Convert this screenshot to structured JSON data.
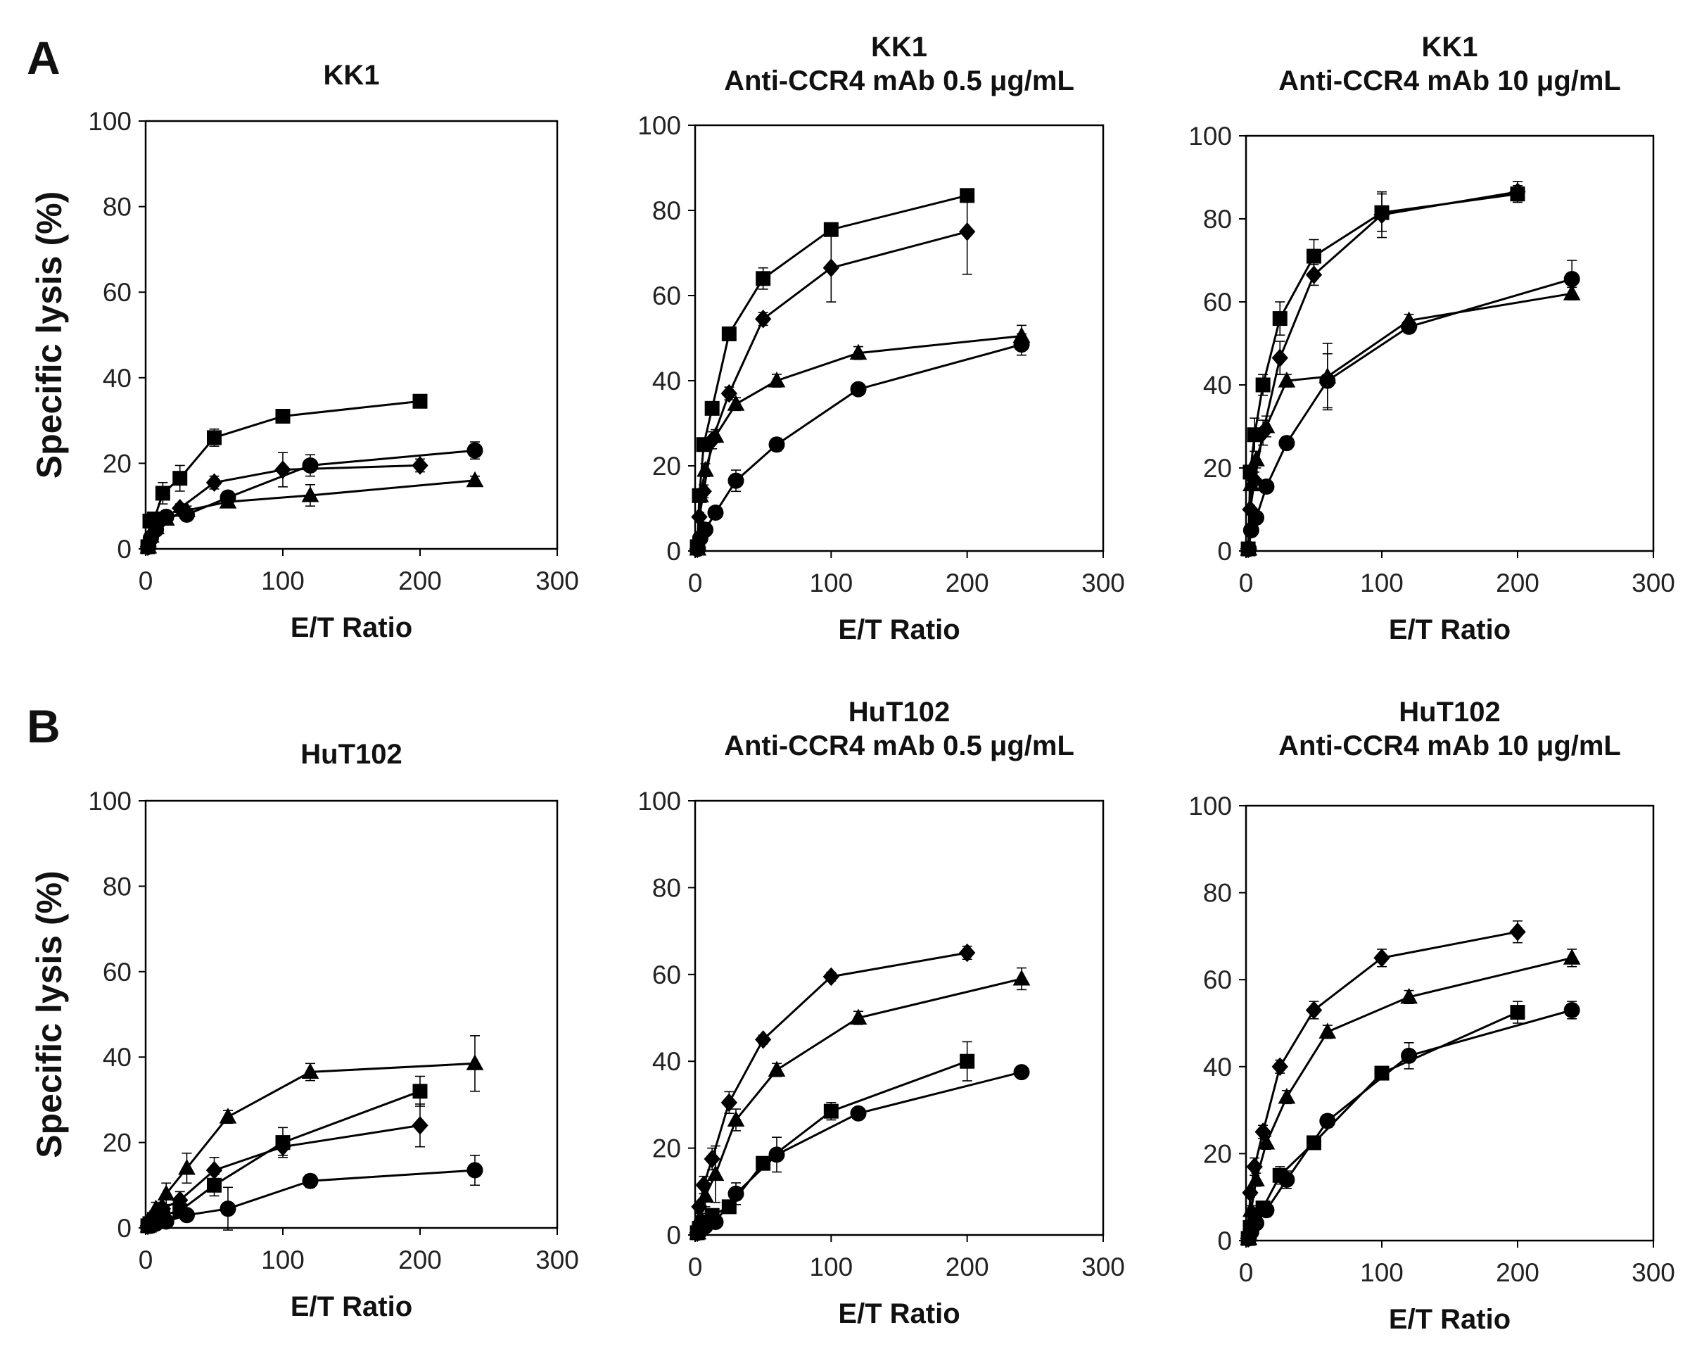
{
  "panel_labels": [
    "A",
    "B"
  ],
  "chart_data": [
    {
      "type": "line",
      "panel": "A",
      "title_lines": [
        "KK1"
      ],
      "xlabel": "E/T Ratio",
      "ylabel": "Specific lysis (%)",
      "xlim": [
        0,
        300
      ],
      "ylim": [
        0,
        100
      ],
      "xticks": [
        "0",
        "100",
        "200",
        "300"
      ],
      "yticks": [
        "0",
        "20",
        "40",
        "60",
        "80",
        "100"
      ],
      "series": [
        {
          "name": "square",
          "marker": "square",
          "x": [
            1.6,
            3.1,
            6.3,
            12.5,
            25,
            50,
            100,
            200
          ],
          "y": [
            0.5,
            6.5,
            7,
            13,
            16.5,
            26,
            31,
            34.5
          ],
          "err": [
            0.5,
            1,
            1.5,
            2.5,
            3,
            2,
            1.5,
            1
          ]
        },
        {
          "name": "diamond",
          "marker": "diamond",
          "x": [
            1.6,
            3.1,
            6.3,
            12.5,
            25,
            50,
            100,
            200
          ],
          "y": [
            0.5,
            2,
            4,
            7,
            9.5,
            15.5,
            18.5,
            19.5
          ],
          "err": [
            0.5,
            0.5,
            1,
            1,
            1,
            1.5,
            4,
            1.5
          ]
        },
        {
          "name": "triangle",
          "marker": "triangle",
          "x": [
            2,
            3.8,
            7.5,
            15,
            30,
            60,
            120,
            240
          ],
          "y": [
            0.5,
            3,
            5,
            7,
            9,
            11,
            12.5,
            16
          ],
          "err": [
            0.5,
            0.5,
            1,
            1,
            1,
            1,
            2.5,
            1
          ]
        },
        {
          "name": "circle",
          "marker": "circle",
          "x": [
            2,
            3.8,
            7.5,
            15,
            30,
            60,
            120,
            240
          ],
          "y": [
            0.5,
            2.5,
            4.5,
            7.5,
            8,
            12,
            19.5,
            23
          ],
          "err": [
            0.5,
            0.5,
            1,
            1,
            1,
            1,
            2.5,
            2
          ]
        }
      ]
    },
    {
      "type": "line",
      "panel": "A",
      "title_lines": [
        "KK1",
        "Anti-CCR4 mAb 0.5 μg/mL"
      ],
      "xlabel": "E/T Ratio",
      "ylabel": "",
      "xlim": [
        0,
        300
      ],
      "ylim": [
        0,
        100
      ],
      "xticks": [
        "0",
        "100",
        "200",
        "300"
      ],
      "yticks": [
        "0",
        "20",
        "40",
        "60",
        "80",
        "100"
      ],
      "series": [
        {
          "name": "square",
          "marker": "square",
          "x": [
            1.6,
            3.1,
            6.3,
            12.5,
            25,
            50,
            100,
            200
          ],
          "y": [
            1,
            13,
            25,
            33.5,
            51,
            64,
            75.5,
            83.5
          ],
          "err": [
            0.5,
            1,
            1.5,
            1.5,
            1.5,
            2.5,
            1.5,
            1.5
          ]
        },
        {
          "name": "diamond",
          "marker": "diamond",
          "x": [
            1.6,
            3.1,
            6.3,
            12.5,
            25,
            50,
            100,
            200
          ],
          "y": [
            0.5,
            8,
            14,
            26,
            37,
            54.5,
            66.5,
            75
          ],
          "err": [
            0.5,
            1,
            1.5,
            2,
            1.5,
            1.5,
            8,
            10
          ]
        },
        {
          "name": "triangle",
          "marker": "triangle",
          "x": [
            2,
            3.8,
            7.5,
            15,
            30,
            60,
            120,
            240
          ],
          "y": [
            0.5,
            13,
            19,
            27,
            34.5,
            40,
            46.5,
            50.5
          ],
          "err": [
            0.5,
            1,
            1.5,
            1.5,
            1.5,
            1.5,
            1.5,
            2.5
          ]
        },
        {
          "name": "circle",
          "marker": "circle",
          "x": [
            2,
            3.8,
            7.5,
            15,
            30,
            60,
            120,
            240
          ],
          "y": [
            0.5,
            3,
            5,
            9,
            16.5,
            25,
            38,
            48.5
          ],
          "err": [
            0.5,
            0.5,
            1,
            1,
            2.5,
            1.5,
            1,
            2.5
          ]
        }
      ]
    },
    {
      "type": "line",
      "panel": "A",
      "title_lines": [
        "KK1",
        "Anti-CCR4 mAb 10 μg/mL"
      ],
      "xlabel": "E/T Ratio",
      "ylabel": "",
      "xlim": [
        0,
        300
      ],
      "ylim": [
        0,
        100
      ],
      "xticks": [
        "0",
        "100",
        "200",
        "300"
      ],
      "yticks": [
        "0",
        "20",
        "40",
        "60",
        "80",
        "100"
      ],
      "series": [
        {
          "name": "square",
          "marker": "square",
          "x": [
            1.6,
            3.1,
            6.3,
            12.5,
            25,
            50,
            100,
            200
          ],
          "y": [
            0.5,
            19,
            28,
            40,
            56,
            71,
            81.5,
            86
          ],
          "err": [
            0.5,
            1.5,
            4,
            2.5,
            4,
            4,
            4.5,
            2
          ]
        },
        {
          "name": "diamond",
          "marker": "diamond",
          "x": [
            1.6,
            3.1,
            6.3,
            12.5,
            25,
            50,
            100,
            200
          ],
          "y": [
            0.5,
            10,
            17,
            28.5,
            46.5,
            66.5,
            81,
            86.5
          ],
          "err": [
            0.5,
            1,
            2,
            3,
            4,
            2.5,
            5.5,
            2.5
          ]
        },
        {
          "name": "triangle",
          "marker": "triangle",
          "x": [
            2,
            3.8,
            7.5,
            15,
            30,
            60,
            120,
            240
          ],
          "y": [
            0.5,
            16,
            22,
            30,
            41,
            42,
            55.5,
            62
          ],
          "err": [
            0.5,
            1,
            2,
            2.5,
            1.5,
            8,
            1.5,
            1.5
          ]
        },
        {
          "name": "circle",
          "marker": "circle",
          "x": [
            2,
            3.8,
            7.5,
            15,
            30,
            60,
            120,
            240
          ],
          "y": [
            0.5,
            5,
            8,
            15.5,
            26,
            41,
            54,
            65.5
          ],
          "err": [
            0.5,
            1,
            1,
            1.5,
            1.5,
            6.5,
            1.5,
            4.5
          ]
        }
      ]
    },
    {
      "type": "line",
      "panel": "B",
      "title_lines": [
        "HuT102"
      ],
      "xlabel": "E/T Ratio",
      "ylabel": "Specific lysis (%)",
      "xlim": [
        0,
        300
      ],
      "ylim": [
        0,
        100
      ],
      "xticks": [
        "0",
        "100",
        "200",
        "300"
      ],
      "yticks": [
        "0",
        "20",
        "40",
        "60",
        "80",
        "100"
      ],
      "series": [
        {
          "name": "square",
          "marker": "square",
          "x": [
            1.6,
            3.1,
            6.3,
            12.5,
            25,
            50,
            100,
            200
          ],
          "y": [
            0.5,
            1,
            2,
            3,
            4,
            10,
            20,
            32
          ],
          "err": [
            0.5,
            0.5,
            1,
            1,
            1,
            2.5,
            3.5,
            3.5
          ]
        },
        {
          "name": "diamond",
          "marker": "diamond",
          "x": [
            1.6,
            3.1,
            6.3,
            12.5,
            25,
            50,
            100,
            200
          ],
          "y": [
            0.5,
            1.5,
            3,
            4.5,
            6.5,
            13.5,
            19,
            24
          ],
          "err": [
            0.5,
            0.5,
            1,
            1,
            2,
            3,
            2,
            5
          ]
        },
        {
          "name": "triangle",
          "marker": "triangle",
          "x": [
            2,
            3.8,
            7.5,
            15,
            30,
            60,
            120,
            240
          ],
          "y": [
            0.5,
            2,
            4.5,
            8,
            14,
            26,
            36.5,
            38.5
          ],
          "err": [
            0.5,
            0.5,
            1.5,
            2.5,
            3.5,
            1.5,
            2,
            6.5
          ]
        },
        {
          "name": "circle",
          "marker": "circle",
          "x": [
            2,
            3.8,
            7.5,
            15,
            30,
            60,
            120,
            240
          ],
          "y": [
            0.5,
            0.5,
            1,
            1.5,
            3,
            4.5,
            11,
            13.5
          ],
          "err": [
            0.5,
            0.5,
            0.5,
            0.5,
            1,
            5,
            1.5,
            3.5
          ]
        }
      ]
    },
    {
      "type": "line",
      "panel": "B",
      "title_lines": [
        "HuT102",
        "Anti-CCR4 mAb 0.5 μg/mL"
      ],
      "xlabel": "E/T Ratio",
      "ylabel": "",
      "xlim": [
        0,
        300
      ],
      "ylim": [
        0,
        100
      ],
      "xticks": [
        "0",
        "100",
        "200",
        "300"
      ],
      "yticks": [
        "0",
        "20",
        "40",
        "60",
        "80",
        "100"
      ],
      "series": [
        {
          "name": "square",
          "marker": "square",
          "x": [
            1.6,
            3.1,
            6.3,
            12.5,
            25,
            50,
            100,
            200
          ],
          "y": [
            0.5,
            1.5,
            3,
            4.5,
            6.5,
            16.5,
            28.5,
            40
          ],
          "err": [
            0.5,
            0.5,
            1,
            1,
            1.5,
            1.5,
            2,
            4.5
          ]
        },
        {
          "name": "diamond",
          "marker": "diamond",
          "x": [
            1.6,
            3.1,
            6.3,
            12.5,
            25,
            50,
            100,
            200
          ],
          "y": [
            0.5,
            6.5,
            11.5,
            17.5,
            30.5,
            45,
            59.5,
            65
          ],
          "err": [
            0.5,
            1,
            2,
            2.5,
            2.5,
            1,
            1,
            1.5
          ]
        },
        {
          "name": "triangle",
          "marker": "triangle",
          "x": [
            2,
            3.8,
            7.5,
            15,
            30,
            60,
            120,
            240
          ],
          "y": [
            0.5,
            4,
            9,
            14,
            26.5,
            38,
            50,
            59
          ],
          "err": [
            0.5,
            1,
            2.5,
            6.5,
            2.5,
            1.5,
            1.5,
            2.5
          ]
        },
        {
          "name": "circle",
          "marker": "circle",
          "x": [
            2,
            3.8,
            7.5,
            15,
            30,
            60,
            120,
            240
          ],
          "y": [
            0.5,
            1,
            2,
            3,
            9.5,
            18.5,
            28,
            37.5
          ],
          "err": [
            0.5,
            0.5,
            1,
            1,
            2.5,
            4,
            1,
            1
          ]
        }
      ]
    },
    {
      "type": "line",
      "panel": "B",
      "title_lines": [
        "HuT102",
        "Anti-CCR4 mAb 10 μg/mL"
      ],
      "xlabel": "E/T Ratio",
      "ylabel": "",
      "xlim": [
        0,
        300
      ],
      "ylim": [
        0,
        100
      ],
      "xticks": [
        "0",
        "100",
        "200",
        "300"
      ],
      "yticks": [
        "0",
        "20",
        "40",
        "60",
        "80",
        "100"
      ],
      "series": [
        {
          "name": "square",
          "marker": "square",
          "x": [
            1.6,
            3.1,
            6.3,
            12.5,
            25,
            50,
            100,
            200
          ],
          "y": [
            0.5,
            3,
            6,
            7.5,
            15,
            22.5,
            38.5,
            52.5
          ],
          "err": [
            0.5,
            1,
            1.5,
            1.5,
            2,
            1.5,
            1.5,
            2.5
          ]
        },
        {
          "name": "diamond",
          "marker": "diamond",
          "x": [
            1.6,
            3.1,
            6.3,
            12.5,
            25,
            50,
            100,
            200
          ],
          "y": [
            0.5,
            11,
            17,
            25,
            40,
            53,
            65,
            71
          ],
          "err": [
            0.5,
            1,
            2,
            1.5,
            1.5,
            2,
            2,
            2.5
          ]
        },
        {
          "name": "triangle",
          "marker": "triangle",
          "x": [
            2,
            3.8,
            7.5,
            15,
            30,
            60,
            120,
            240
          ],
          "y": [
            0.5,
            7,
            14,
            22.5,
            33,
            48,
            56,
            65
          ],
          "err": [
            0.5,
            1,
            1.5,
            1.5,
            1.5,
            1.5,
            1.5,
            2
          ]
        },
        {
          "name": "circle",
          "marker": "circle",
          "x": [
            2,
            3.8,
            7.5,
            15,
            30,
            60,
            120,
            240
          ],
          "y": [
            0.5,
            2,
            4,
            7,
            14,
            27.5,
            42.5,
            53
          ],
          "err": [
            0.5,
            0.5,
            1,
            1.5,
            2,
            1.5,
            3,
            2
          ]
        }
      ]
    }
  ]
}
